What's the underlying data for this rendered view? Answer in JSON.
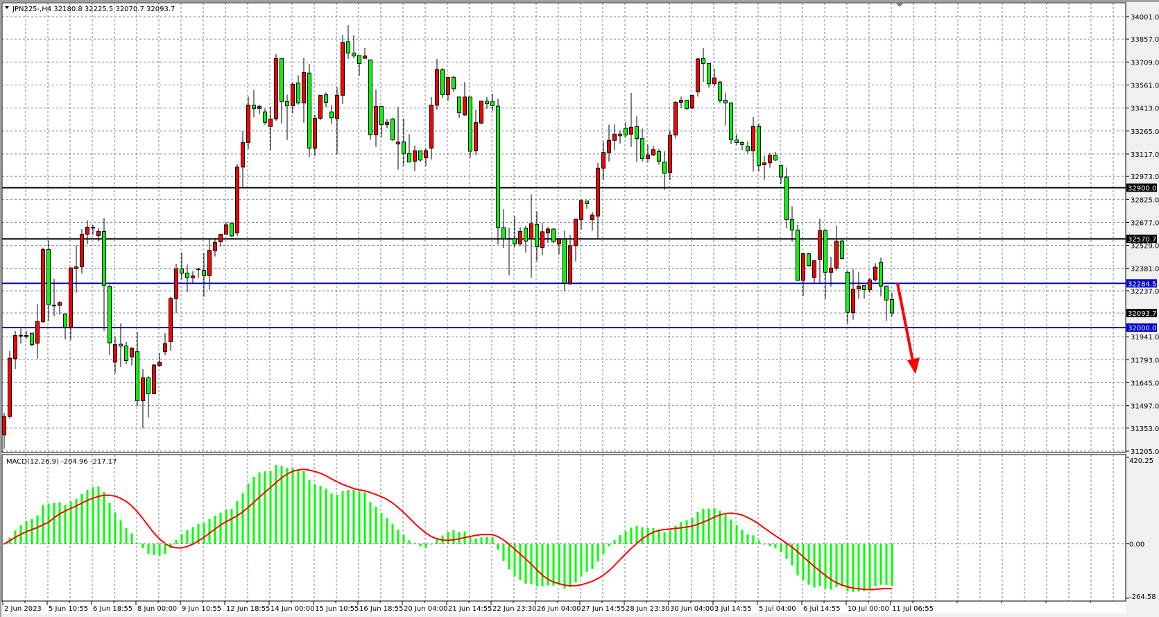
{
  "header": {
    "symbol": "JPN225-",
    "timeframe": "H4",
    "title": "JPN225-,H4  32180.8 32225.5 32070.7 32093.7",
    "menu_icon": "triangle-down-icon"
  },
  "colors": {
    "bull": "#ff0000",
    "bear": "#00ff00",
    "grid": "#708090",
    "support_resistance": "#000000",
    "key_levels": "#0000cc",
    "macd_histogram": "#00ff00",
    "macd_signal": "#ff0000",
    "arrow": "#ff0000"
  },
  "chart_data": {
    "type": "candlestick",
    "ylim": [
      31205.0,
      34001.0
    ],
    "grid": true,
    "price_ticks": [
      "34001.0",
      "33857.0",
      "33709.0",
      "33561.0",
      "33413.0",
      "33265.0",
      "33117.0",
      "32973.0",
      "32825.0",
      "32677.0",
      "32529.0",
      "32381.0",
      "32237.0",
      "31941.0",
      "31793.0",
      "31645.0",
      "31497.0",
      "31353.0",
      "31205.0"
    ],
    "price_tick_values": [
      34001,
      33857,
      33709,
      33561,
      33413,
      33265,
      33117,
      32973,
      32825,
      32677,
      32529,
      32381,
      32237,
      31941,
      31793,
      31645,
      31497,
      31353,
      31205
    ],
    "time_labels": [
      "2 Jun 2023",
      "5 Jun 10:55",
      "6 Jun 18:55",
      "8 Jun 00:00",
      "9 Jun 10:55",
      "12 Jun 18:55",
      "14 Jun 00:00",
      "15 Jun 10:55",
      "16 Jun 18:55",
      "20 Jun 04:00",
      "21 Jun 14:55",
      "22 Jun 23:30",
      "26 Jun 04:00",
      "27 Jun 14:55",
      "28 Jun 23:30",
      "30 Jun 04:00",
      "3 Jul 14:55",
      "5 Jul 04:00",
      "6 Jul 14:55",
      "10 Jul 00:00",
      "11 Jul 06:55"
    ],
    "hlines": [
      {
        "value": 32900.0,
        "label": "32900.0",
        "color": "#000000"
      },
      {
        "value": 32570.7,
        "label": "32570.7",
        "color": "#000000"
      },
      {
        "value": 32284.5,
        "label": "32284.5",
        "color": "#0000cc"
      },
      {
        "value": 32000.0,
        "label": "32000.0",
        "color": "#0000cc"
      }
    ],
    "current_price": {
      "value": 32093.7,
      "label": "32093.7"
    },
    "arrow": {
      "direction": "down",
      "from_price": 32284.5,
      "to_price": 31700
    },
    "ohlc": [
      [
        31309,
        31451,
        31220,
        31428
      ],
      [
        31428,
        31848,
        31413,
        31803
      ],
      [
        31800,
        31979,
        31733,
        31949
      ],
      [
        31949,
        31994,
        31897,
        31950
      ],
      [
        31949,
        31979,
        31927,
        31948
      ],
      [
        31964,
        31964,
        31879,
        31890
      ],
      [
        31900,
        32153,
        31800,
        32039
      ],
      [
        32039,
        32515,
        32028,
        32503
      ],
      [
        32503,
        32560,
        32043,
        32146
      ],
      [
        32143,
        32314,
        32073,
        32144
      ],
      [
        32143,
        32170,
        32083,
        32161
      ],
      [
        32088,
        32088,
        31924,
        32001
      ],
      [
        32001,
        32384,
        31919,
        32384
      ],
      [
        32381,
        32530,
        32225,
        32391
      ],
      [
        32391,
        32634,
        32348,
        32601
      ],
      [
        32601,
        32691,
        32537,
        32646
      ],
      [
        32644,
        32661,
        32597,
        32645
      ],
      [
        32592,
        32641,
        32552,
        32619
      ],
      [
        32619,
        32705,
        31979,
        32272
      ],
      [
        32265,
        32277,
        31823,
        31902
      ],
      [
        31778,
        31939,
        31704,
        31890
      ],
      [
        31893,
        32028,
        31745,
        31881
      ],
      [
        31882,
        31908,
        31763,
        31788
      ],
      [
        31811,
        31875,
        31756,
        31867
      ],
      [
        31845,
        31972,
        31495,
        31529
      ],
      [
        31529,
        31733,
        31351,
        31677
      ],
      [
        31677,
        31686,
        31421,
        31574
      ],
      [
        31574,
        31763,
        31574,
        31759
      ],
      [
        31756,
        31836,
        31748,
        31777
      ],
      [
        31845,
        31964,
        31823,
        31897
      ],
      [
        31909,
        32199,
        31850,
        32187
      ],
      [
        32187,
        32411,
        32094,
        32378
      ],
      [
        32378,
        32482,
        32310,
        32351
      ],
      [
        32351,
        32406,
        32229,
        32321
      ],
      [
        32321,
        32363,
        32289,
        32333
      ],
      [
        32376,
        32384,
        32318,
        32377
      ],
      [
        32369,
        32478,
        32199,
        32333
      ],
      [
        32333,
        32567,
        32243,
        32497
      ],
      [
        32494,
        32567,
        32458,
        32548
      ],
      [
        32552,
        32604,
        32522,
        32601
      ],
      [
        32601,
        32679,
        32601,
        32661
      ],
      [
        32673,
        32673,
        32584,
        32590
      ],
      [
        32609,
        33053,
        32587,
        33033
      ],
      [
        33033,
        33264,
        32899,
        33190
      ],
      [
        33190,
        33487,
        33148,
        33432
      ],
      [
        33432,
        33528,
        33353,
        33410
      ],
      [
        33410,
        33435,
        33373,
        33423
      ],
      [
        33388,
        33410,
        33306,
        33321
      ],
      [
        33294,
        33423,
        33141,
        33343
      ],
      [
        33343,
        33760,
        33331,
        33732
      ],
      [
        33732,
        33732,
        33313,
        33455
      ],
      [
        33455,
        33499,
        33208,
        33428
      ],
      [
        33428,
        33577,
        33380,
        33566
      ],
      [
        33574,
        33624,
        33435,
        33446
      ],
      [
        33446,
        33736,
        33319,
        33642
      ],
      [
        33638,
        33696,
        33096,
        33155
      ],
      [
        33155,
        33368,
        33105,
        33346
      ],
      [
        33346,
        33495,
        33336,
        33495
      ],
      [
        33499,
        33513,
        33420,
        33450
      ],
      [
        33388,
        33432,
        33309,
        33350
      ],
      [
        33346,
        33547,
        33115,
        33495
      ],
      [
        33495,
        33885,
        33438,
        33834
      ],
      [
        33840,
        33947,
        33729,
        33767
      ],
      [
        33767,
        33882,
        33733,
        33748
      ],
      [
        33751,
        33751,
        33621,
        33699
      ],
      [
        33733,
        33800,
        33729,
        33748
      ],
      [
        33723,
        33723,
        33208,
        33242
      ],
      [
        33242,
        33532,
        33163,
        33423
      ],
      [
        33423,
        33423,
        33227,
        33306
      ],
      [
        33306,
        33343,
        33282,
        33321
      ],
      [
        33343,
        33350,
        33202,
        33208
      ],
      [
        33182,
        33420,
        33016,
        33194
      ],
      [
        33194,
        33346,
        33041,
        33120
      ],
      [
        33120,
        33245,
        33066,
        33066
      ],
      [
        33071,
        33170,
        33007,
        33138
      ],
      [
        33138,
        33138,
        33068,
        33078
      ],
      [
        33093,
        33155,
        33041,
        33138
      ],
      [
        33155,
        33483,
        33082,
        33432
      ],
      [
        33432,
        33729,
        33401,
        33660
      ],
      [
        33660,
        33670,
        33477,
        33499
      ],
      [
        33499,
        33611,
        33462,
        33611
      ],
      [
        33611,
        33621,
        33517,
        33537
      ],
      [
        33484,
        33484,
        33350,
        33383
      ],
      [
        33368,
        33580,
        33361,
        33484
      ],
      [
        33484,
        33484,
        33093,
        33135
      ],
      [
        33138,
        33403,
        33111,
        33319
      ],
      [
        33316,
        33458,
        33309,
        33458
      ],
      [
        33458,
        33483,
        33408,
        33440
      ],
      [
        33453,
        33505,
        33394,
        33428
      ],
      [
        33425,
        33473,
        32535,
        32643
      ],
      [
        32643,
        32762,
        32512,
        32572
      ],
      [
        32572,
        32643,
        32337,
        32573
      ],
      [
        32572,
        32718,
        32515,
        32539
      ],
      [
        32539,
        32646,
        32524,
        32619
      ],
      [
        32639,
        32654,
        32483,
        32557
      ],
      [
        32572,
        32858,
        32319,
        32669
      ],
      [
        32664,
        32747,
        32427,
        32520
      ],
      [
        32515,
        32676,
        32465,
        32617
      ],
      [
        32609,
        32649,
        32545,
        32634
      ],
      [
        32634,
        32639,
        32542,
        32554
      ],
      [
        32539,
        32572,
        32472,
        32569
      ],
      [
        32569,
        32624,
        32237,
        32286
      ],
      [
        32282,
        32594,
        32274,
        32527
      ],
      [
        32527,
        32698,
        32426,
        32698
      ],
      [
        32695,
        32825,
        32631,
        32817
      ],
      [
        32815,
        32817,
        32765,
        32798
      ],
      [
        32694,
        32743,
        32624,
        32724
      ],
      [
        32718,
        33059,
        32575,
        33026
      ],
      [
        33026,
        33197,
        32951,
        33127
      ],
      [
        33127,
        33306,
        33068,
        33205
      ],
      [
        33205,
        33309,
        33141,
        33245
      ],
      [
        33245,
        33267,
        33185,
        33234
      ],
      [
        33283,
        33321,
        33227,
        33239
      ],
      [
        33245,
        33510,
        33163,
        33289
      ],
      [
        33294,
        33361,
        33068,
        33216
      ],
      [
        33216,
        33282,
        33068,
        33088
      ],
      [
        33088,
        33178,
        33066,
        33111
      ],
      [
        33111,
        33170,
        33103,
        33145
      ],
      [
        33133,
        33148,
        33048,
        33071
      ],
      [
        33066,
        33135,
        32887,
        32993
      ],
      [
        32999,
        33269,
        32951,
        33239
      ],
      [
        33239,
        33458,
        33217,
        33450
      ],
      [
        33450,
        33487,
        33413,
        33462
      ],
      [
        33462,
        33462,
        33400,
        33410
      ],
      [
        33413,
        33495,
        33406,
        33495
      ],
      [
        33517,
        33733,
        33487,
        33729
      ],
      [
        33732,
        33800,
        33581,
        33700
      ],
      [
        33699,
        33699,
        33543,
        33569
      ],
      [
        33569,
        33666,
        33554,
        33607
      ],
      [
        33580,
        33589,
        33443,
        33462
      ],
      [
        33462,
        33510,
        33301,
        33446
      ],
      [
        33446,
        33450,
        33182,
        33208
      ],
      [
        33208,
        33245,
        33175,
        33190
      ],
      [
        33190,
        33200,
        33141,
        33178
      ],
      [
        33165,
        33200,
        33123,
        33138
      ],
      [
        33138,
        33358,
        33004,
        33294
      ],
      [
        33294,
        33313,
        33004,
        33044
      ],
      [
        33048,
        33103,
        32951,
        33060
      ],
      [
        33060,
        33126,
        33029,
        33108
      ],
      [
        33108,
        33130,
        33071,
        33078
      ],
      [
        33044,
        33048,
        32926,
        32969
      ],
      [
        32969,
        33030,
        32639,
        32695
      ],
      [
        32695,
        32780,
        32554,
        32628
      ],
      [
        32628,
        32661,
        32301,
        32304
      ],
      [
        32304,
        32483,
        32204,
        32475
      ],
      [
        32475,
        32480,
        32393,
        32398
      ],
      [
        32323,
        32438,
        32286,
        32430
      ],
      [
        32438,
        32701,
        32286,
        32624
      ],
      [
        32624,
        32632,
        32185,
        32356
      ],
      [
        32356,
        32456,
        32264,
        32383
      ],
      [
        32383,
        32657,
        32368,
        32557
      ],
      [
        32557,
        32564,
        32438,
        32445
      ],
      [
        32356,
        32366,
        32024,
        32098
      ],
      [
        32096,
        32375,
        32051,
        32247
      ],
      [
        32249,
        32359,
        32185,
        32267
      ],
      [
        32271,
        32274,
        32185,
        32244
      ],
      [
        32244,
        32319,
        32225,
        32307
      ],
      [
        32307,
        32415,
        32296,
        32389
      ],
      [
        32419,
        32450,
        32200,
        32267
      ],
      [
        32267,
        32267,
        32043,
        32177
      ],
      [
        32180.8,
        32225.5,
        32070.7,
        32093.7
      ]
    ],
    "macd": {
      "label": "MACD(12,26,9) -204.96 -217.17",
      "fast": 12,
      "slow": 26,
      "signal": 9,
      "ylim": [
        -264.58,
        420.25
      ],
      "ticks": [
        "420.25",
        "0.00",
        "-264.58"
      ],
      "tick_values": [
        420.25,
        0,
        -264.58
      ]
    }
  }
}
